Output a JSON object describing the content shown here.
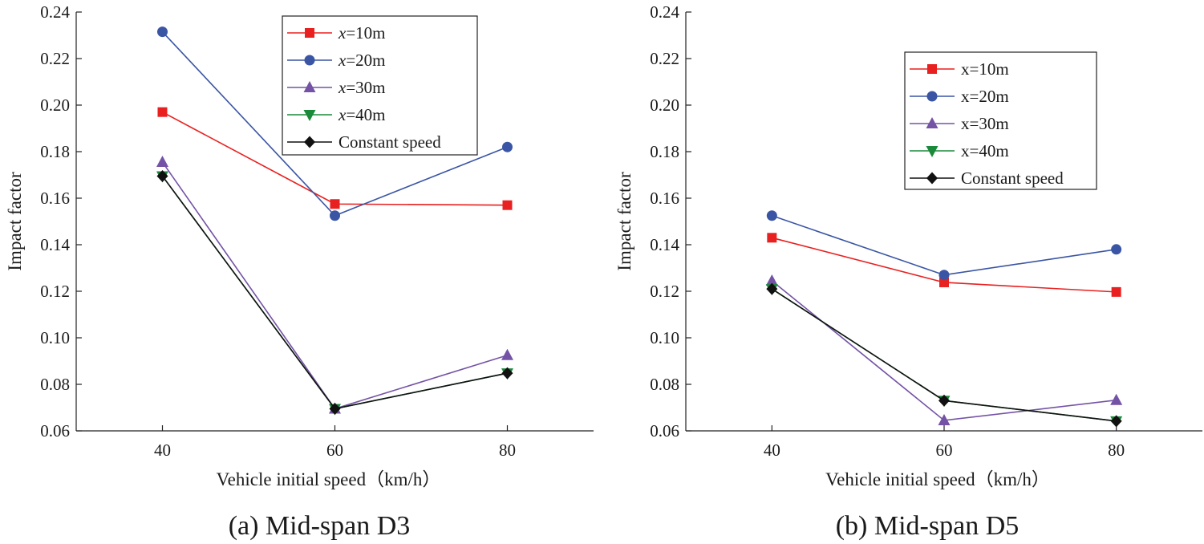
{
  "chart_data": [
    {
      "type": "line",
      "title": "",
      "caption": "(a) Mid-span D3",
      "xlabel": "Vehicle initial speed（km/h）",
      "ylabel": "Impact factor",
      "x": [
        40,
        60,
        80
      ],
      "xlim": [
        30,
        90
      ],
      "ylim": [
        0.06,
        0.24
      ],
      "xticks": [
        "40",
        "60",
        "80"
      ],
      "yticks": [
        "0.06",
        "0.08",
        "0.10",
        "0.12",
        "0.14",
        "0.16",
        "0.18",
        "0.20",
        "0.22",
        "0.24"
      ],
      "legend_position": "top-right",
      "series": [
        {
          "name_italic": "x",
          "name_rest": "=10m",
          "color": "#e8201f",
          "marker": "square",
          "values": [
            0.197,
            0.1575,
            0.157
          ]
        },
        {
          "name_italic": "x",
          "name_rest": "=20m",
          "color": "#3a55a4",
          "marker": "circle",
          "values": [
            0.2315,
            0.1525,
            0.182
          ]
        },
        {
          "name_italic": "x",
          "name_rest": "=30m",
          "color": "#7453a6",
          "marker": "triangle-up",
          "values": [
            0.1755,
            0.0695,
            0.0925
          ]
        },
        {
          "name_italic": "x",
          "name_rest": "=40m",
          "color": "#1a8a3a",
          "marker": "triangle-down",
          "values": [
            0.1695,
            0.0695,
            0.0848
          ]
        },
        {
          "name_italic": "",
          "name_rest": "Constant speed",
          "color": "#111111",
          "marker": "diamond",
          "values": [
            0.1695,
            0.0695,
            0.0848
          ]
        }
      ]
    },
    {
      "type": "line",
      "title": "",
      "caption": "(b) Mid-span D5",
      "xlabel": "Vehicle initial speed（km/h）",
      "ylabel": "Impact factor",
      "x": [
        40,
        60,
        80
      ],
      "xlim": [
        30,
        90
      ],
      "ylim": [
        0.06,
        0.24
      ],
      "xticks": [
        "40",
        "60",
        "80"
      ],
      "yticks": [
        "0.06",
        "0.08",
        "0.10",
        "0.12",
        "0.14",
        "0.16",
        "0.18",
        "0.20",
        "0.22",
        "0.24"
      ],
      "legend_position": "top-right",
      "series": [
        {
          "name_italic": "",
          "name_rest": "x=10m",
          "color": "#e8201f",
          "marker": "square",
          "values": [
            0.143,
            0.1238,
            0.1197
          ]
        },
        {
          "name_italic": "",
          "name_rest": "x=20m",
          "color": "#3a55a4",
          "marker": "circle",
          "values": [
            0.1525,
            0.127,
            0.138
          ]
        },
        {
          "name_italic": "",
          "name_rest": "x=30m",
          "color": "#7453a6",
          "marker": "triangle-up",
          "values": [
            0.1245,
            0.0645,
            0.0732
          ]
        },
        {
          "name_italic": "",
          "name_rest": "x=40m",
          "color": "#1a8a3a",
          "marker": "triangle-down",
          "values": [
            0.121,
            0.073,
            0.0642
          ]
        },
        {
          "name_italic": "",
          "name_rest": "Constant speed",
          "color": "#111111",
          "marker": "diamond",
          "values": [
            0.121,
            0.073,
            0.0642
          ]
        }
      ]
    }
  ]
}
